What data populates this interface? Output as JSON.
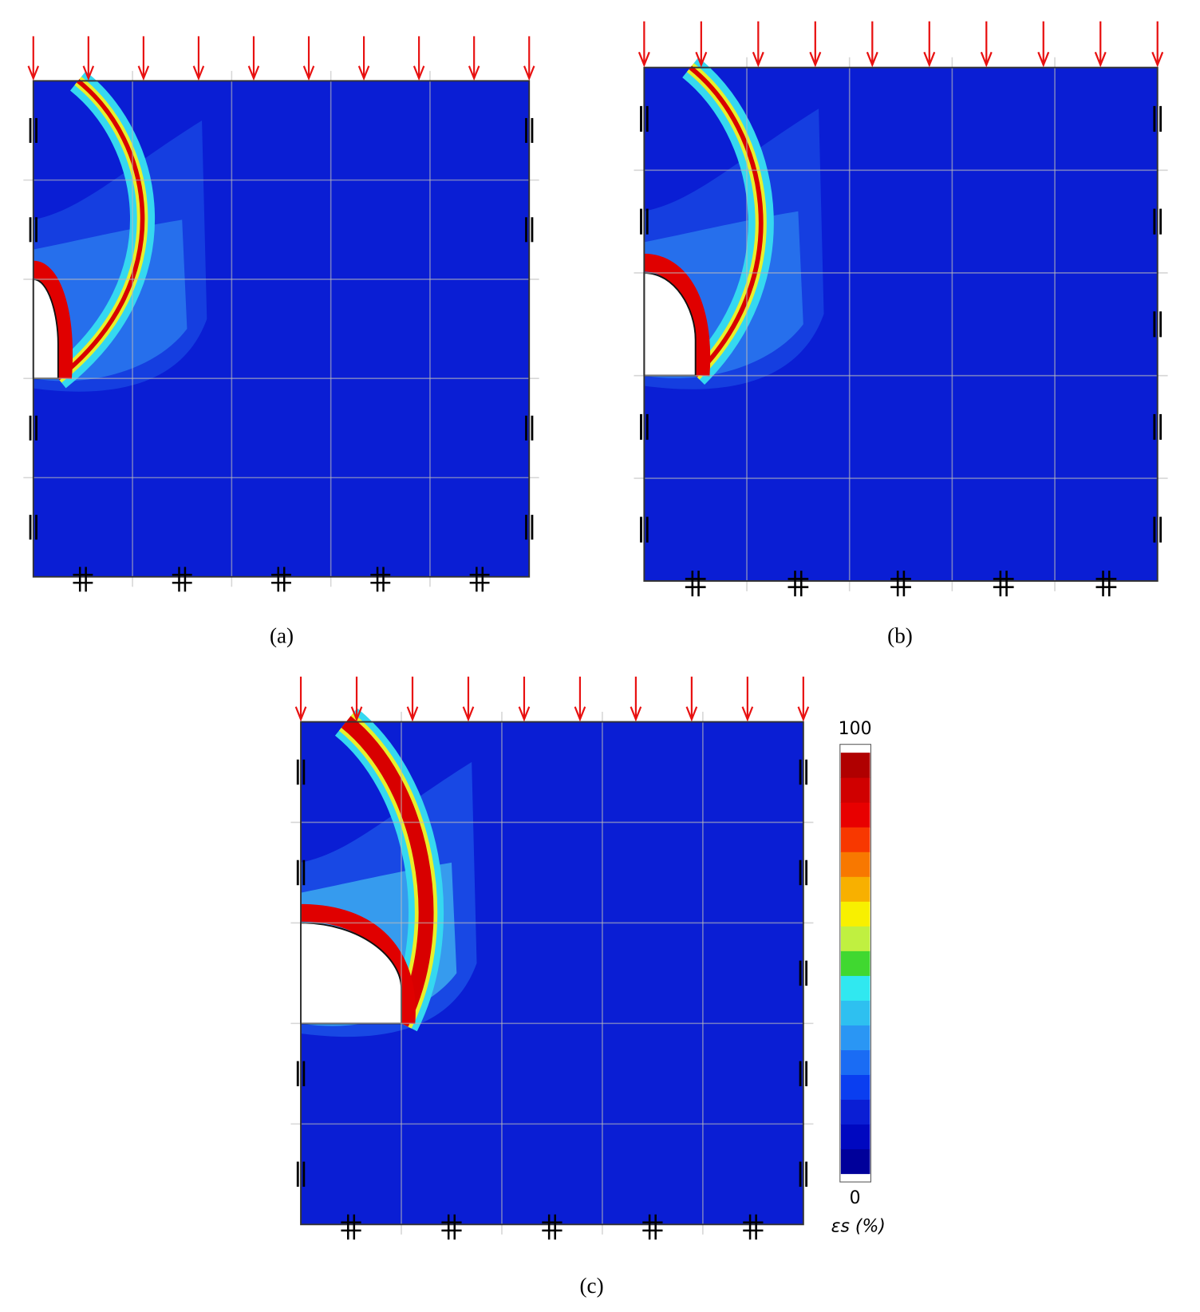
{
  "panels": [
    {
      "label": "(a)"
    },
    {
      "label": "(b)"
    },
    {
      "label": "(c)"
    }
  ],
  "colorbar": {
    "max_label": "100",
    "min_label": "0",
    "title": "εs (%)"
  }
}
